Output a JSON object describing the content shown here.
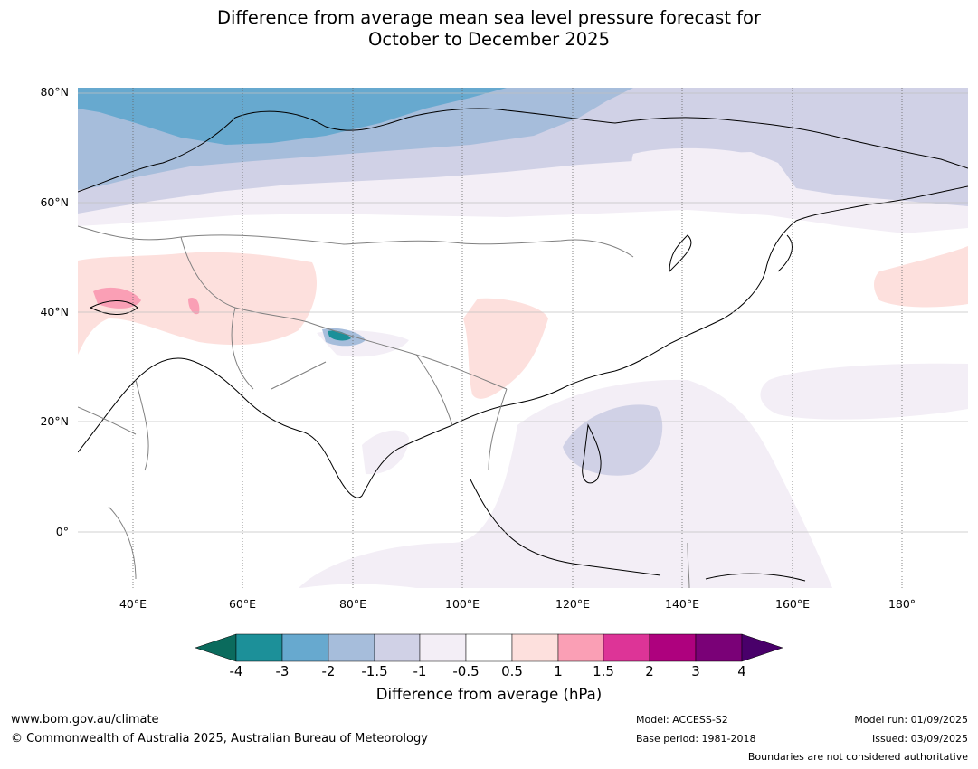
{
  "title_line1": "Difference from average mean sea level pressure forecast for",
  "title_line2": "October to December 2025",
  "lat_labels": [
    "80°N",
    "60°N",
    "40°N",
    "20°N",
    "0°"
  ],
  "lon_labels": [
    "40°E",
    "60°E",
    "80°E",
    "100°E",
    "120°E",
    "140°E",
    "160°E",
    "180°"
  ],
  "colorbar": {
    "ticks": [
      "-4",
      "-3",
      "-2",
      "-1.5",
      "-1",
      "-0.5",
      "0.5",
      "1",
      "1.5",
      "2",
      "3",
      "4"
    ],
    "colors": [
      "#0b6b5d",
      "#1c9099",
      "#67a9cf",
      "#a6bddb",
      "#d0d1e6",
      "#f3eef6",
      "#ffffff",
      "#fde0dd",
      "#fa9fb5",
      "#dd3497",
      "#ae017e",
      "#7a0177",
      "#49006a"
    ],
    "label": "Difference from average (hPa)"
  },
  "footer": {
    "url": "www.bom.gov.au/climate",
    "copyright": "© Commonwealth of Australia 2025, Australian Bureau of Meteorology",
    "model": "Model: ACCESS-S2",
    "base_period": "Base period: 1981-2018",
    "model_run": "Model run: 01/09/2025",
    "issued": "Issued: 03/09/2025",
    "boundaries": "Boundaries are not considered authoritative"
  }
}
